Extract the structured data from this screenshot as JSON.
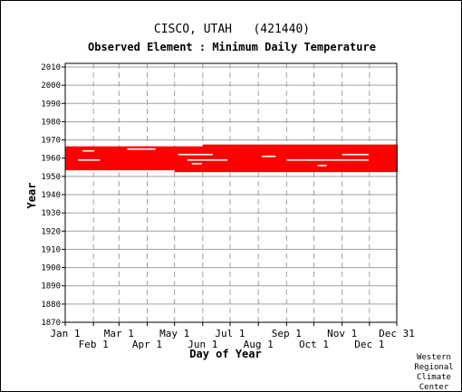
{
  "title": "CISCO, UTAH   (421440)",
  "subtitle": "Observed Element : Minimum Daily Temperature",
  "credit": [
    "Western",
    "Regional",
    "Climate",
    "Center"
  ],
  "chart_data": {
    "type": "scatter",
    "title": "CISCO, UTAH   (421440)",
    "subtitle": "Observed Element : Minimum Daily Temperature",
    "xlabel": "Day of Year",
    "ylabel": "Year",
    "xlim": [
      "Jan 1",
      "Dec 31"
    ],
    "ylim": [
      1870,
      2012
    ],
    "x_ticks_top_row": [
      "Jan 1",
      "Mar 1",
      "May 1",
      "Jul 1",
      "Sep 1",
      "Nov 1",
      "Dec 31"
    ],
    "x_ticks_bottom_row": [
      "Feb 1",
      "Apr 1",
      "Jun 1",
      "Aug 1",
      "Oct 1",
      "Dec 1"
    ],
    "y_ticks": [
      1870,
      1880,
      1890,
      1900,
      1910,
      1920,
      1930,
      1940,
      1950,
      1960,
      1970,
      1980,
      1990,
      2000,
      2010
    ],
    "grid": true,
    "series_color": "#ff0000",
    "observed_periods": [
      {
        "from": "Jan 1 1955",
        "to": "Dec 31 1966"
      },
      {
        "from": "May 1 1953",
        "to": "Dec 31 1954"
      },
      {
        "from": "Jun 1 1967",
        "to": "Dec 31 1967"
      }
    ],
    "missing_gaps": [
      {
        "year": 1965,
        "from": "Mar 10",
        "to": "Apr 10"
      },
      {
        "year": 1962,
        "from": "May 5",
        "to": "Jun 12"
      },
      {
        "year": 1961,
        "from": "Aug 5",
        "to": "Aug 20"
      },
      {
        "year": 1959,
        "from": "Jan 15",
        "to": "Feb 8"
      },
      {
        "year": 1959,
        "from": "May 15",
        "to": "Jun 28"
      },
      {
        "year": 1959,
        "from": "Sep 1",
        "to": "Nov 30"
      },
      {
        "year": 1962,
        "from": "Nov 1",
        "to": "Nov 30"
      },
      {
        "year": 1964,
        "from": "Jan 20",
        "to": "Feb 2"
      },
      {
        "year": 1957,
        "from": "May 20",
        "to": "May 31"
      },
      {
        "year": 1956,
        "from": "Oct 5",
        "to": "Oct 15"
      }
    ]
  }
}
